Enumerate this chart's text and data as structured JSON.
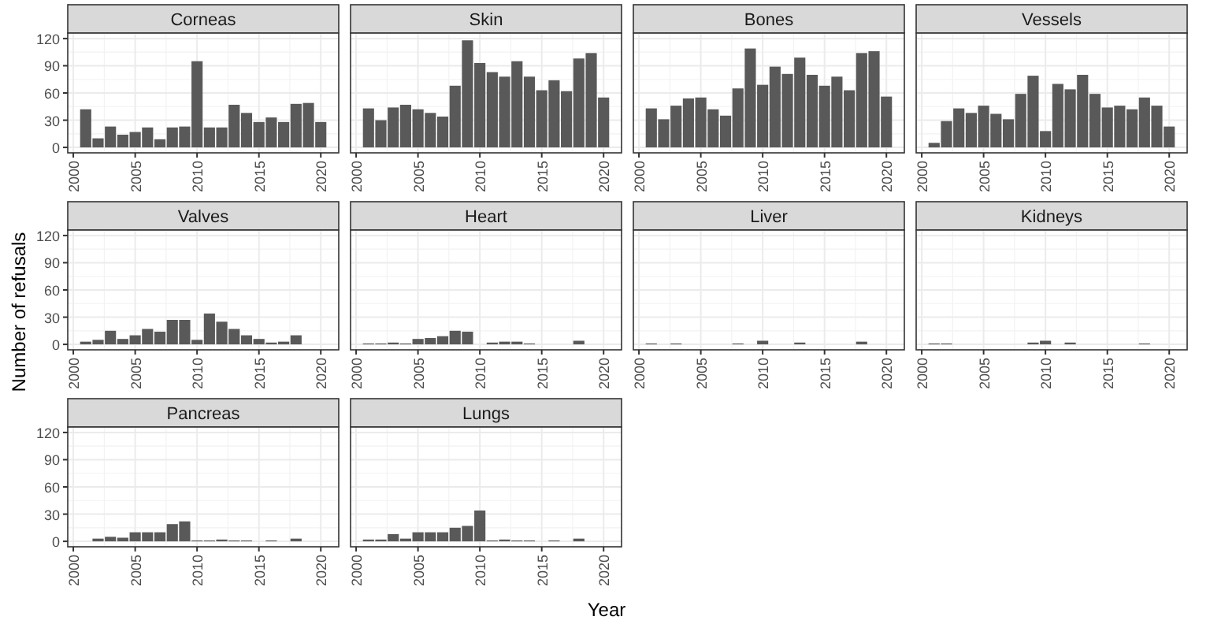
{
  "chart_data": [
    {
      "type": "bar",
      "title": "Corneas",
      "x": [
        2001,
        2002,
        2003,
        2004,
        2005,
        2006,
        2007,
        2008,
        2009,
        2010,
        2011,
        2012,
        2013,
        2014,
        2015,
        2016,
        2017,
        2018,
        2019,
        2020
      ],
      "values": [
        42,
        10,
        23,
        14,
        17,
        22,
        9,
        22,
        23,
        95,
        22,
        22,
        47,
        38,
        28,
        33,
        28,
        48,
        49,
        28
      ],
      "color": "#595959",
      "xlim": [
        1999.55,
        2021.45
      ],
      "xticks": [
        2000,
        2005,
        2010,
        2015,
        2020
      ],
      "ylim": [
        -6,
        126
      ],
      "yticks": [
        0,
        30,
        60,
        90,
        120
      ],
      "grid": true
    },
    {
      "type": "bar",
      "title": "Skin",
      "x": [
        2001,
        2002,
        2003,
        2004,
        2005,
        2006,
        2007,
        2008,
        2009,
        2010,
        2011,
        2012,
        2013,
        2014,
        2015,
        2016,
        2017,
        2018,
        2019,
        2020
      ],
      "values": [
        43,
        30,
        44,
        47,
        42,
        38,
        34,
        68,
        118,
        93,
        83,
        78,
        95,
        78,
        63,
        74,
        62,
        98,
        104,
        55
      ],
      "color": "#595959",
      "xlim": [
        1999.55,
        2021.45
      ],
      "xticks": [
        2000,
        2005,
        2010,
        2015,
        2020
      ],
      "ylim": [
        -6,
        126
      ],
      "yticks": [
        0,
        30,
        60,
        90,
        120
      ],
      "grid": true,
      "tick_labels": "x"
    },
    {
      "type": "bar",
      "title": "Bones",
      "x": [
        2001,
        2002,
        2003,
        2004,
        2005,
        2006,
        2007,
        2008,
        2009,
        2010,
        2011,
        2012,
        2013,
        2014,
        2015,
        2016,
        2017,
        2018,
        2019,
        2020
      ],
      "values": [
        43,
        31,
        46,
        54,
        55,
        42,
        35,
        65,
        109,
        69,
        89,
        81,
        99,
        80,
        68,
        78,
        63,
        104,
        106,
        56
      ],
      "color": "#595959",
      "xlim": [
        1999.55,
        2021.45
      ],
      "xticks": [
        2000,
        2005,
        2010,
        2015,
        2020
      ],
      "ylim": [
        -6,
        126
      ],
      "yticks": [
        0,
        30,
        60,
        90,
        120
      ],
      "grid": true,
      "tick_labels": "x"
    },
    {
      "type": "bar",
      "title": "Vessels",
      "x": [
        2001,
        2002,
        2003,
        2004,
        2005,
        2006,
        2007,
        2008,
        2009,
        2010,
        2011,
        2012,
        2013,
        2014,
        2015,
        2016,
        2017,
        2018,
        2019,
        2020
      ],
      "values": [
        5,
        29,
        43,
        38,
        46,
        37,
        31,
        59,
        79,
        18,
        70,
        64,
        80,
        59,
        44,
        46,
        42,
        55,
        46,
        23
      ],
      "color": "#595959",
      "xlim": [
        1999.55,
        2021.45
      ],
      "xticks": [
        2000,
        2005,
        2010,
        2015,
        2020
      ],
      "ylim": [
        -6,
        126
      ],
      "yticks": [
        0,
        30,
        60,
        90,
        120
      ],
      "grid": true,
      "tick_labels": "x"
    },
    {
      "type": "bar",
      "title": "Valves",
      "ylabel": "Number of refusals",
      "x": [
        2001,
        2002,
        2003,
        2004,
        2005,
        2006,
        2007,
        2008,
        2009,
        2010,
        2011,
        2012,
        2013,
        2014,
        2015,
        2016,
        2017,
        2018
      ],
      "values": [
        3,
        5,
        15,
        6,
        10,
        17,
        14,
        27,
        27,
        5,
        34,
        25,
        17,
        10,
        6,
        2,
        3,
        10
      ],
      "color": "#595959",
      "xlim": [
        1999.55,
        2021.45
      ],
      "xticks": [
        2000,
        2005,
        2010,
        2015,
        2020
      ],
      "ylim": [
        -6,
        126
      ],
      "yticks": [
        0,
        30,
        60,
        90,
        120
      ],
      "grid": true
    },
    {
      "type": "bar",
      "title": "Heart",
      "x": [
        2001,
        2002,
        2003,
        2004,
        2005,
        2006,
        2007,
        2008,
        2009,
        2011,
        2012,
        2013,
        2014,
        2018
      ],
      "values": [
        1,
        1,
        2,
        1,
        6,
        7,
        9,
        15,
        14,
        2,
        3,
        3,
        1,
        4
      ],
      "color": "#595959",
      "xlim": [
        1999.55,
        2021.45
      ],
      "xticks": [
        2000,
        2005,
        2010,
        2015,
        2020
      ],
      "ylim": [
        -6,
        126
      ],
      "yticks": [
        0,
        30,
        60,
        90,
        120
      ],
      "grid": true,
      "tick_labels": "x"
    },
    {
      "type": "bar",
      "title": "Liver",
      "x": [
        2001,
        2003,
        2008,
        2010,
        2013,
        2018
      ],
      "values": [
        1,
        1,
        1,
        4,
        2,
        3
      ],
      "color": "#595959",
      "xlim": [
        1999.55,
        2021.45
      ],
      "xticks": [
        2000,
        2005,
        2010,
        2015,
        2020
      ],
      "ylim": [
        -6,
        126
      ],
      "yticks": [
        0,
        30,
        60,
        90,
        120
      ],
      "grid": true,
      "tick_labels": "x"
    },
    {
      "type": "bar",
      "title": "Kidneys",
      "x": [
        2001,
        2002,
        2009,
        2010,
        2012,
        2018
      ],
      "values": [
        1,
        1,
        2,
        4,
        2,
        1
      ],
      "color": "#595959",
      "xlim": [
        1999.55,
        2021.45
      ],
      "xticks": [
        2000,
        2005,
        2010,
        2015,
        2020
      ],
      "ylim": [
        -6,
        126
      ],
      "yticks": [
        0,
        30,
        60,
        90,
        120
      ],
      "grid": true,
      "tick_labels": "x"
    },
    {
      "type": "bar",
      "title": "Pancreas",
      "x": [
        2002,
        2003,
        2004,
        2005,
        2006,
        2007,
        2008,
        2009,
        2010,
        2011,
        2012,
        2013,
        2014,
        2016,
        2018
      ],
      "values": [
        3,
        5,
        4,
        10,
        10,
        10,
        19,
        22,
        1,
        1,
        2,
        1,
        1,
        1,
        3
      ],
      "color": "#595959",
      "xlim": [
        1999.55,
        2021.45
      ],
      "xticks": [
        2000,
        2005,
        2010,
        2015,
        2020
      ],
      "ylim": [
        -6,
        126
      ],
      "yticks": [
        0,
        30,
        60,
        90,
        120
      ],
      "grid": true
    },
    {
      "type": "bar",
      "title": "Lungs",
      "xlabel": "Year",
      "x": [
        2001,
        2002,
        2003,
        2004,
        2005,
        2006,
        2007,
        2008,
        2009,
        2010,
        2011,
        2012,
        2013,
        2014,
        2016,
        2018
      ],
      "values": [
        2,
        2,
        8,
        3,
        10,
        10,
        10,
        15,
        17,
        34,
        1,
        2,
        1,
        1,
        1,
        3
      ],
      "color": "#595959",
      "xlim": [
        1999.55,
        2021.45
      ],
      "xticks": [
        2000,
        2005,
        2010,
        2015,
        2020
      ],
      "ylim": [
        -6,
        126
      ],
      "yticks": [
        0,
        30,
        60,
        90,
        120
      ],
      "grid": true,
      "tick_labels": "x"
    }
  ]
}
